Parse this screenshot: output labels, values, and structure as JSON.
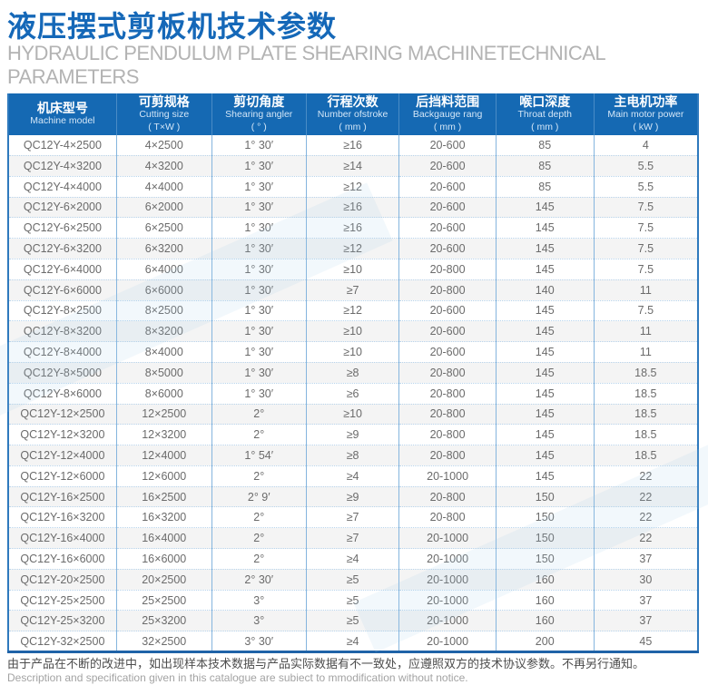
{
  "page": {
    "title_cn": "液压摆式剪板机技术参数",
    "subtitle_en": "HYDRAULIC PENDULUM PLATE SHEARING MACHINETECHNICAL PARAMETERS"
  },
  "colors": {
    "header-bg": "#1569b3",
    "title-blue": "#1568b8",
    "subtitle-gray": "#b3b3b3",
    "border-blue": "#2e79bd",
    "line-blue": "#85b5de",
    "row-alt": "#f4f4f4",
    "cell-text": "#6b6b6b"
  },
  "table": {
    "columns": [
      {
        "cn": "机床型号",
        "en": "Machine model",
        "unit": ""
      },
      {
        "cn": "可剪规格",
        "en": "Cutting size",
        "unit": "( T×W )"
      },
      {
        "cn": "剪切角度",
        "en": "Shearing angler",
        "unit": "( ° )"
      },
      {
        "cn": "行程次数",
        "en": "Number ofstroke",
        "unit": "( mm )"
      },
      {
        "cn": "后挡料范围",
        "en": "Backgauge rang",
        "unit": "( mm )"
      },
      {
        "cn": "喉口深度",
        "en": "Throat depth",
        "unit": "( mm )"
      },
      {
        "cn": "主电机功率",
        "en": "Main motor power",
        "unit": "( kW )"
      }
    ],
    "rows": [
      [
        "QC12Y-4×2500",
        "4×2500",
        "1° 30′",
        "≥16",
        "20-600",
        "85",
        "4"
      ],
      [
        "QC12Y-4×3200",
        "4×3200",
        "1° 30′",
        "≥14",
        "20-600",
        "85",
        "5.5"
      ],
      [
        "QC12Y-4×4000",
        "4×4000",
        "1° 30′",
        "≥12",
        "20-600",
        "85",
        "5.5"
      ],
      [
        "QC12Y-6×2000",
        "6×2000",
        "1° 30′",
        "≥16",
        "20-600",
        "145",
        "7.5"
      ],
      [
        "QC12Y-6×2500",
        "6×2500",
        "1° 30′",
        "≥16",
        "20-600",
        "145",
        "7.5"
      ],
      [
        "QC12Y-6×3200",
        "6×3200",
        "1° 30′",
        "≥12",
        "20-600",
        "145",
        "7.5"
      ],
      [
        "QC12Y-6×4000",
        "6×4000",
        "1° 30′",
        "≥10",
        "20-800",
        "145",
        "7.5"
      ],
      [
        "QC12Y-6×6000",
        "6×6000",
        "1° 30′",
        "≥7",
        "20-800",
        "140",
        "11"
      ],
      [
        "QC12Y-8×2500",
        "8×2500",
        "1° 30′",
        "≥12",
        "20-600",
        "145",
        "7.5"
      ],
      [
        "QC12Y-8×3200",
        "8×3200",
        "1° 30′",
        "≥10",
        "20-600",
        "145",
        "11"
      ],
      [
        "QC12Y-8×4000",
        "8×4000",
        "1° 30′",
        "≥10",
        "20-600",
        "145",
        "11"
      ],
      [
        "QC12Y-8×5000",
        "8×5000",
        "1° 30′",
        "≥8",
        "20-800",
        "145",
        "18.5"
      ],
      [
        "QC12Y-8×6000",
        "8×6000",
        "1° 30′",
        "≥6",
        "20-800",
        "145",
        "18.5"
      ],
      [
        "QC12Y-12×2500",
        "12×2500",
        "2°",
        "≥10",
        "20-800",
        "145",
        "18.5"
      ],
      [
        "QC12Y-12×3200",
        "12×3200",
        "2°",
        "≥9",
        "20-800",
        "145",
        "18.5"
      ],
      [
        "QC12Y-12×4000",
        "12×4000",
        "1° 54′",
        "≥8",
        "20-800",
        "145",
        "18.5"
      ],
      [
        "QC12Y-12×6000",
        "12×6000",
        "2°",
        "≥4",
        "20-1000",
        "145",
        "22"
      ],
      [
        "QC12Y-16×2500",
        "16×2500",
        "2° 9′",
        "≥9",
        "20-800",
        "150",
        "22"
      ],
      [
        "QC12Y-16×3200",
        "16×3200",
        "2°",
        "≥7",
        "20-800",
        "150",
        "22"
      ],
      [
        "QC12Y-16×4000",
        "16×4000",
        "2°",
        "≥7",
        "20-1000",
        "150",
        "22"
      ],
      [
        "QC12Y-16×6000",
        "16×6000",
        "2°",
        "≥4",
        "20-1000",
        "150",
        "37"
      ],
      [
        "QC12Y-20×2500",
        "20×2500",
        "2° 30′",
        "≥5",
        "20-1000",
        "160",
        "30"
      ],
      [
        "QC12Y-25×2500",
        "25×2500",
        "3°",
        "≥5",
        "20-1000",
        "160",
        "37"
      ],
      [
        "QC12Y-25×3200",
        "25×3200",
        "3°",
        "≥5",
        "20-1000",
        "160",
        "37"
      ],
      [
        "QC12Y-32×2500",
        "32×2500",
        "3° 30′",
        "≥4",
        "20-1000",
        "200",
        "45"
      ]
    ]
  },
  "footer": {
    "line_cn": "由于产品在不断的改进中，如出现样本技术数据与产品实际数据有不一致处，应遵照双方的技术协议参数。不再另行通知。",
    "line_en": "Description and specification given in this catalogue are subiect to mmodification without notice."
  }
}
